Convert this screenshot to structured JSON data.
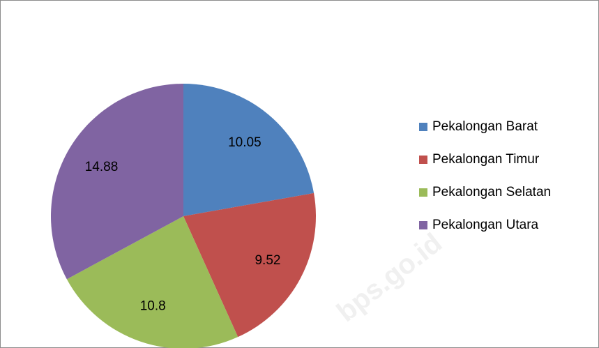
{
  "chart_data": {
    "type": "pie",
    "categories": [
      "Pekalongan Barat",
      "Pekalongan Timur",
      "Pekalongan Selatan",
      "Pekalongan Utara"
    ],
    "values": [
      10.05,
      9.52,
      10.8,
      14.88
    ],
    "colors": [
      "#4f81bd",
      "#c0504d",
      "#9bbb59",
      "#8064a2"
    ],
    "legend": "right",
    "watermark": "bps.go.id"
  }
}
